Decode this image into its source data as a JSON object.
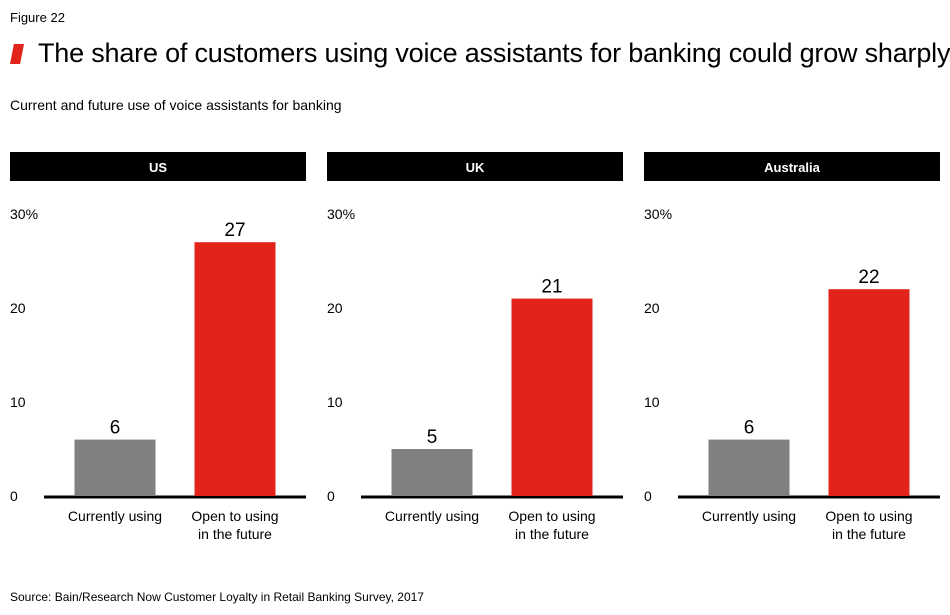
{
  "figure_label": "Figure 22",
  "title": "The share of customers using voice assistants for banking could grow sharply",
  "subtitle": "Current and future use of voice assistants for banking",
  "source": "Source: Bain/Research Now Customer Loyalty in Retail Banking Survey, 2017",
  "colors": {
    "accent": "#e2231a",
    "current": "#808083",
    "future": "#e2231a",
    "header_bg": "#000000"
  },
  "chart_data": [
    {
      "type": "bar",
      "panel_title": "US",
      "categories": [
        [
          "Currently using"
        ],
        [
          "Open to using",
          "in the future"
        ]
      ],
      "values": [
        6,
        27
      ],
      "ylim": [
        0,
        30
      ],
      "yticks": [
        "0",
        "10",
        "20",
        "30%"
      ]
    },
    {
      "type": "bar",
      "panel_title": "UK",
      "categories": [
        [
          "Currently using"
        ],
        [
          "Open to using",
          "in the future"
        ]
      ],
      "values": [
        5,
        21
      ],
      "ylim": [
        0,
        30
      ],
      "yticks": [
        "0",
        "10",
        "20",
        "30%"
      ]
    },
    {
      "type": "bar",
      "panel_title": "Australia",
      "categories": [
        [
          "Currently using"
        ],
        [
          "Open to using",
          "in the future"
        ]
      ],
      "values": [
        6,
        22
      ],
      "ylim": [
        0,
        30
      ],
      "yticks": [
        "0",
        "10",
        "20",
        "30%"
      ]
    }
  ]
}
